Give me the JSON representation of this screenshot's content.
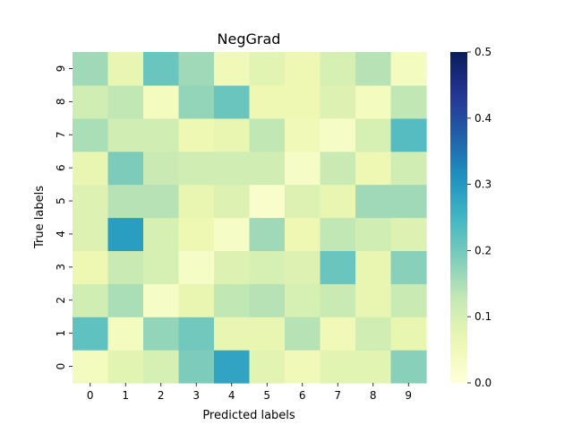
{
  "chart_data": {
    "type": "heatmap",
    "title": "NegGrad",
    "xlabel": "Predicted labels",
    "ylabel": "True labels",
    "x_categories": [
      "0",
      "1",
      "2",
      "3",
      "4",
      "5",
      "6",
      "7",
      "8",
      "9"
    ],
    "y_categories": [
      "0",
      "1",
      "2",
      "3",
      "4",
      "5",
      "6",
      "7",
      "8",
      "9"
    ],
    "y_order": "bottom-to-top",
    "colormap": "YlGnBu",
    "vmin": 0.0,
    "vmax": 0.5,
    "colorbar_ticks": [
      "0.0",
      "0.1",
      "0.2",
      "0.3",
      "0.4",
      "0.5"
    ],
    "values": [
      [
        0.04,
        0.08,
        0.1,
        0.19,
        0.28,
        0.08,
        0.05,
        0.08,
        0.08,
        0.18
      ],
      [
        0.22,
        0.04,
        0.17,
        0.2,
        0.07,
        0.07,
        0.14,
        0.05,
        0.11,
        0.07
      ],
      [
        0.11,
        0.15,
        0.03,
        0.07,
        0.13,
        0.14,
        0.1,
        0.12,
        0.07,
        0.12
      ],
      [
        0.06,
        0.12,
        0.1,
        0.03,
        0.09,
        0.1,
        0.09,
        0.21,
        0.07,
        0.18
      ],
      [
        0.09,
        0.29,
        0.1,
        0.06,
        0.03,
        0.16,
        0.06,
        0.13,
        0.11,
        0.09
      ],
      [
        0.09,
        0.14,
        0.14,
        0.07,
        0.09,
        0.02,
        0.09,
        0.07,
        0.16,
        0.16
      ],
      [
        0.07,
        0.19,
        0.12,
        0.11,
        0.11,
        0.11,
        0.03,
        0.12,
        0.06,
        0.11
      ],
      [
        0.15,
        0.11,
        0.11,
        0.06,
        0.07,
        0.13,
        0.05,
        0.03,
        0.1,
        0.23
      ],
      [
        0.11,
        0.13,
        0.04,
        0.17,
        0.21,
        0.06,
        0.06,
        0.09,
        0.04,
        0.13
      ],
      [
        0.16,
        0.07,
        0.21,
        0.16,
        0.05,
        0.08,
        0.06,
        0.1,
        0.14,
        0.04
      ]
    ],
    "grid": false,
    "colorbar_position": "right"
  }
}
